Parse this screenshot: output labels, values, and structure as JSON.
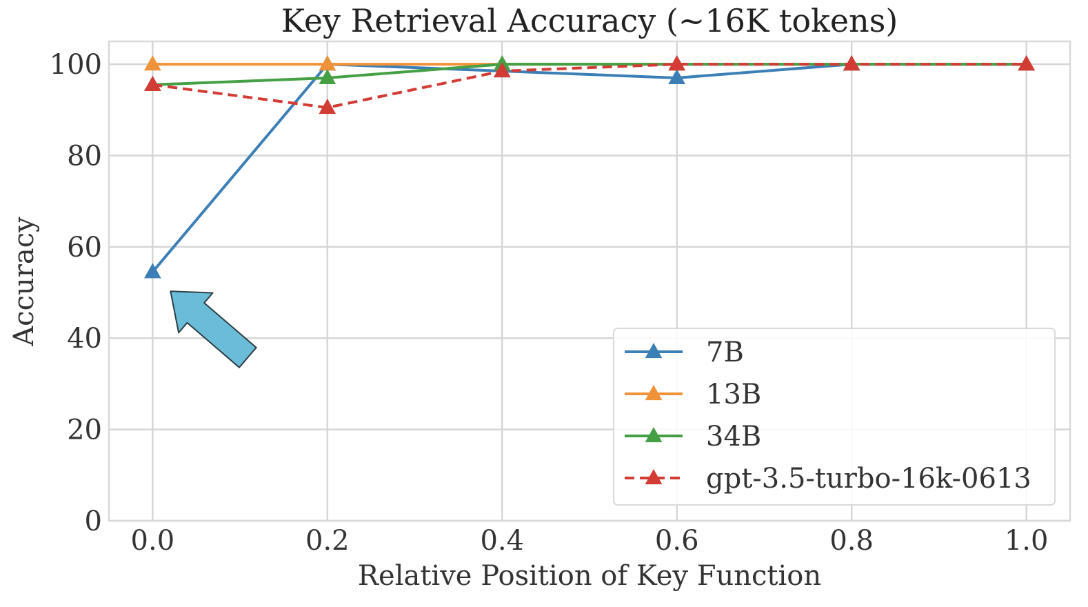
{
  "chart_data": {
    "type": "line",
    "title": "Key Retrieval Accuracy (~16K tokens)",
    "xlabel": "Relative Position of Key Function",
    "ylabel": "Accuracy",
    "xlim": [
      -0.05,
      1.05
    ],
    "ylim": [
      0,
      105
    ],
    "x": [
      0.0,
      0.2,
      0.4,
      0.6,
      0.8,
      1.0
    ],
    "x_ticks": [
      "0.0",
      "0.2",
      "0.4",
      "0.6",
      "0.8",
      "1.0"
    ],
    "y_ticks": [
      "0",
      "20",
      "40",
      "60",
      "80",
      "100"
    ],
    "grid": true,
    "legend_position": "lower-right",
    "marker": "triangle-up",
    "series": [
      {
        "name": "7B",
        "values": [
          54.5,
          100,
          98.5,
          97,
          100,
          100
        ],
        "color": "#3b7fb6",
        "dash": "solid"
      },
      {
        "name": "13B",
        "values": [
          100,
          100,
          100,
          100,
          100,
          100
        ],
        "color": "#f0923a",
        "dash": "solid"
      },
      {
        "name": "34B",
        "values": [
          95.5,
          97,
          100,
          100,
          100,
          100
        ],
        "color": "#45a045",
        "dash": "solid"
      },
      {
        "name": "gpt-3.5-turbo-16k-0613",
        "values": [
          95.5,
          90.5,
          98.5,
          100,
          100,
          100
        ],
        "color": "#d33b35",
        "dash": "dashed"
      }
    ],
    "annotation": {
      "type": "arrow",
      "color": "#6bbcd8",
      "points_to": {
        "x": 0.0,
        "y": 54.5
      }
    }
  }
}
